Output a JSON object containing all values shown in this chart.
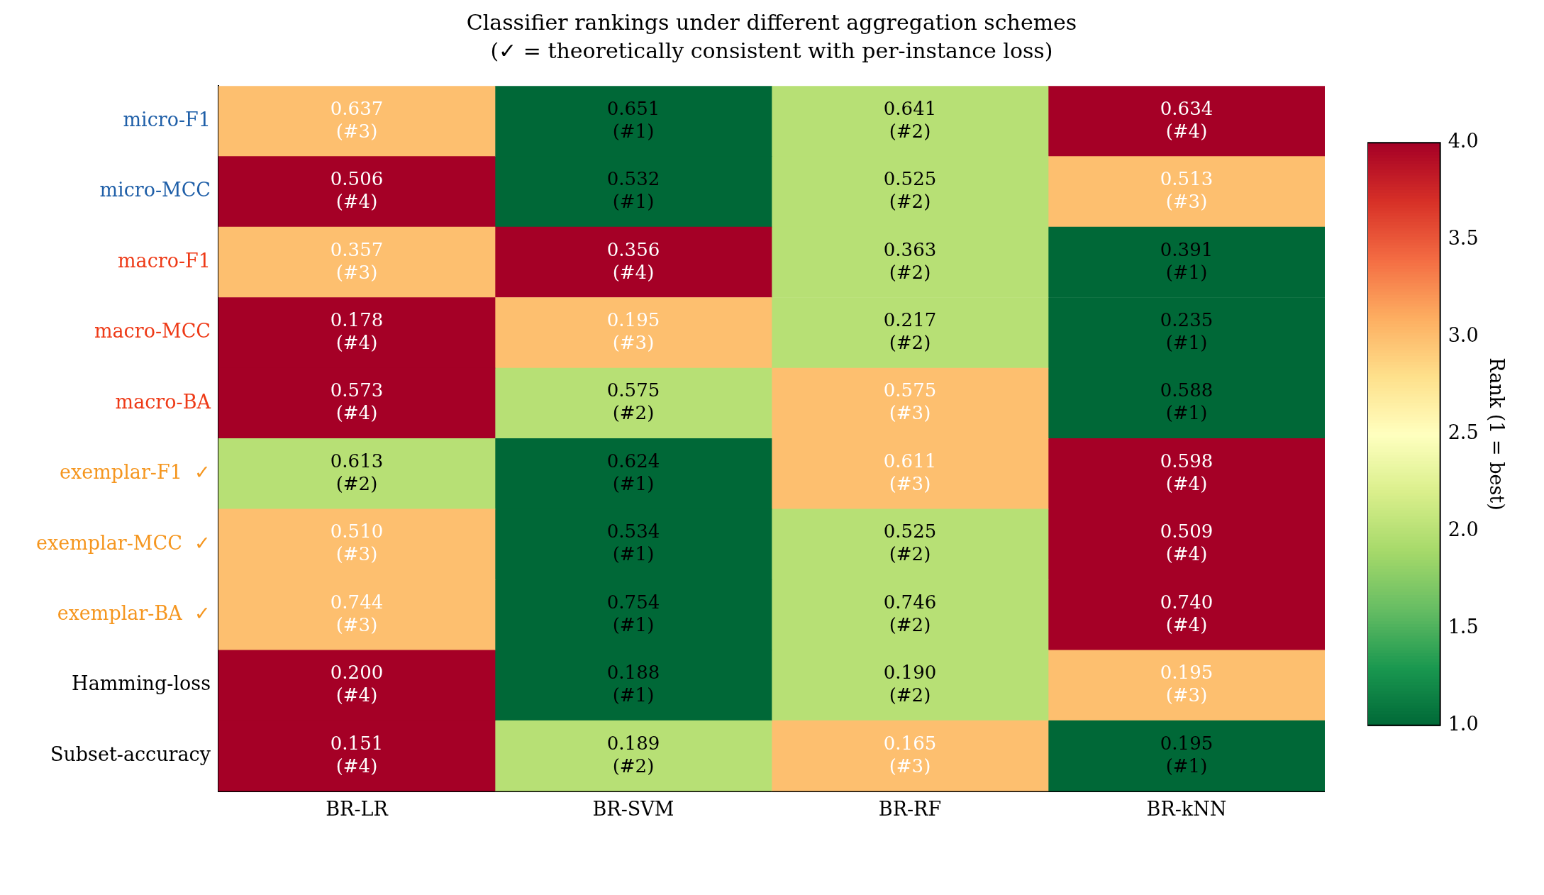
{
  "chart_data": {
    "type": "heatmap",
    "title": "Classifier rankings under different aggregation schemes",
    "subtitle": "(✓ = theoretically consistent with per-instance loss)",
    "categories": [
      "BR-LR",
      "BR-SVM",
      "BR-RF",
      "BR-kNN"
    ],
    "y_categories": [
      "micro-F1",
      "micro-MCC",
      "macro-F1",
      "macro-MCC",
      "macro-BA",
      "exemplar-F1  ✓",
      "exemplar-MCC  ✓",
      "exemplar-BA  ✓",
      "Hamming-loss",
      "Subset-accuracy"
    ],
    "cells": [
      [
        3,
        1,
        2,
        4
      ],
      [
        4,
        1,
        2,
        3
      ],
      [
        3,
        4,
        2,
        1
      ],
      [
        4,
        3,
        2,
        1
      ],
      [
        4,
        2,
        3,
        1
      ],
      [
        2,
        1,
        3,
        4
      ],
      [
        3,
        1,
        2,
        4
      ],
      [
        3,
        1,
        2,
        4
      ],
      [
        4,
        1,
        2,
        3
      ],
      [
        4,
        2,
        3,
        1
      ]
    ],
    "cell_labels": [
      [
        "0.637\n(#3)",
        "0.651\n(#1)",
        "0.641\n(#2)",
        "0.634\n(#4)"
      ],
      [
        "0.506\n(#4)",
        "0.532\n(#1)",
        "0.525\n(#2)",
        "0.513\n(#3)"
      ],
      [
        "0.357\n(#3)",
        "0.356\n(#4)",
        "0.363\n(#2)",
        "0.391\n(#1)"
      ],
      [
        "0.178\n(#4)",
        "0.195\n(#3)",
        "0.217\n(#2)",
        "0.235\n(#1)"
      ],
      [
        "0.573\n(#4)",
        "0.575\n(#2)",
        "0.575\n(#3)",
        "0.588\n(#1)"
      ],
      [
        "0.613\n(#2)",
        "0.624\n(#1)",
        "0.611\n(#3)",
        "0.598\n(#4)"
      ],
      [
        "0.510\n(#3)",
        "0.534\n(#1)",
        "0.525\n(#2)",
        "0.509\n(#4)"
      ],
      [
        "0.744\n(#3)",
        "0.754\n(#1)",
        "0.746\n(#2)",
        "0.740\n(#4)"
      ],
      [
        "0.200\n(#4)",
        "0.188\n(#1)",
        "0.190\n(#2)",
        "0.195\n(#3)"
      ],
      [
        "0.151\n(#4)",
        "0.189\n(#2)",
        "0.165\n(#3)",
        "0.195\n(#1)"
      ]
    ],
    "clim": [
      1,
      4
    ],
    "cticks": [
      {
        "value": 1,
        "label": "1.0"
      },
      {
        "value": 1.5,
        "label": "1.5"
      },
      {
        "value": 2,
        "label": "2.0"
      },
      {
        "value": 2.5,
        "label": "2.5"
      },
      {
        "value": 3,
        "label": "3.0"
      },
      {
        "value": 3.5,
        "label": "3.5"
      },
      {
        "value": 4,
        "label": "4.0"
      }
    ],
    "clabel": "Rank (1 = best)"
  }
}
